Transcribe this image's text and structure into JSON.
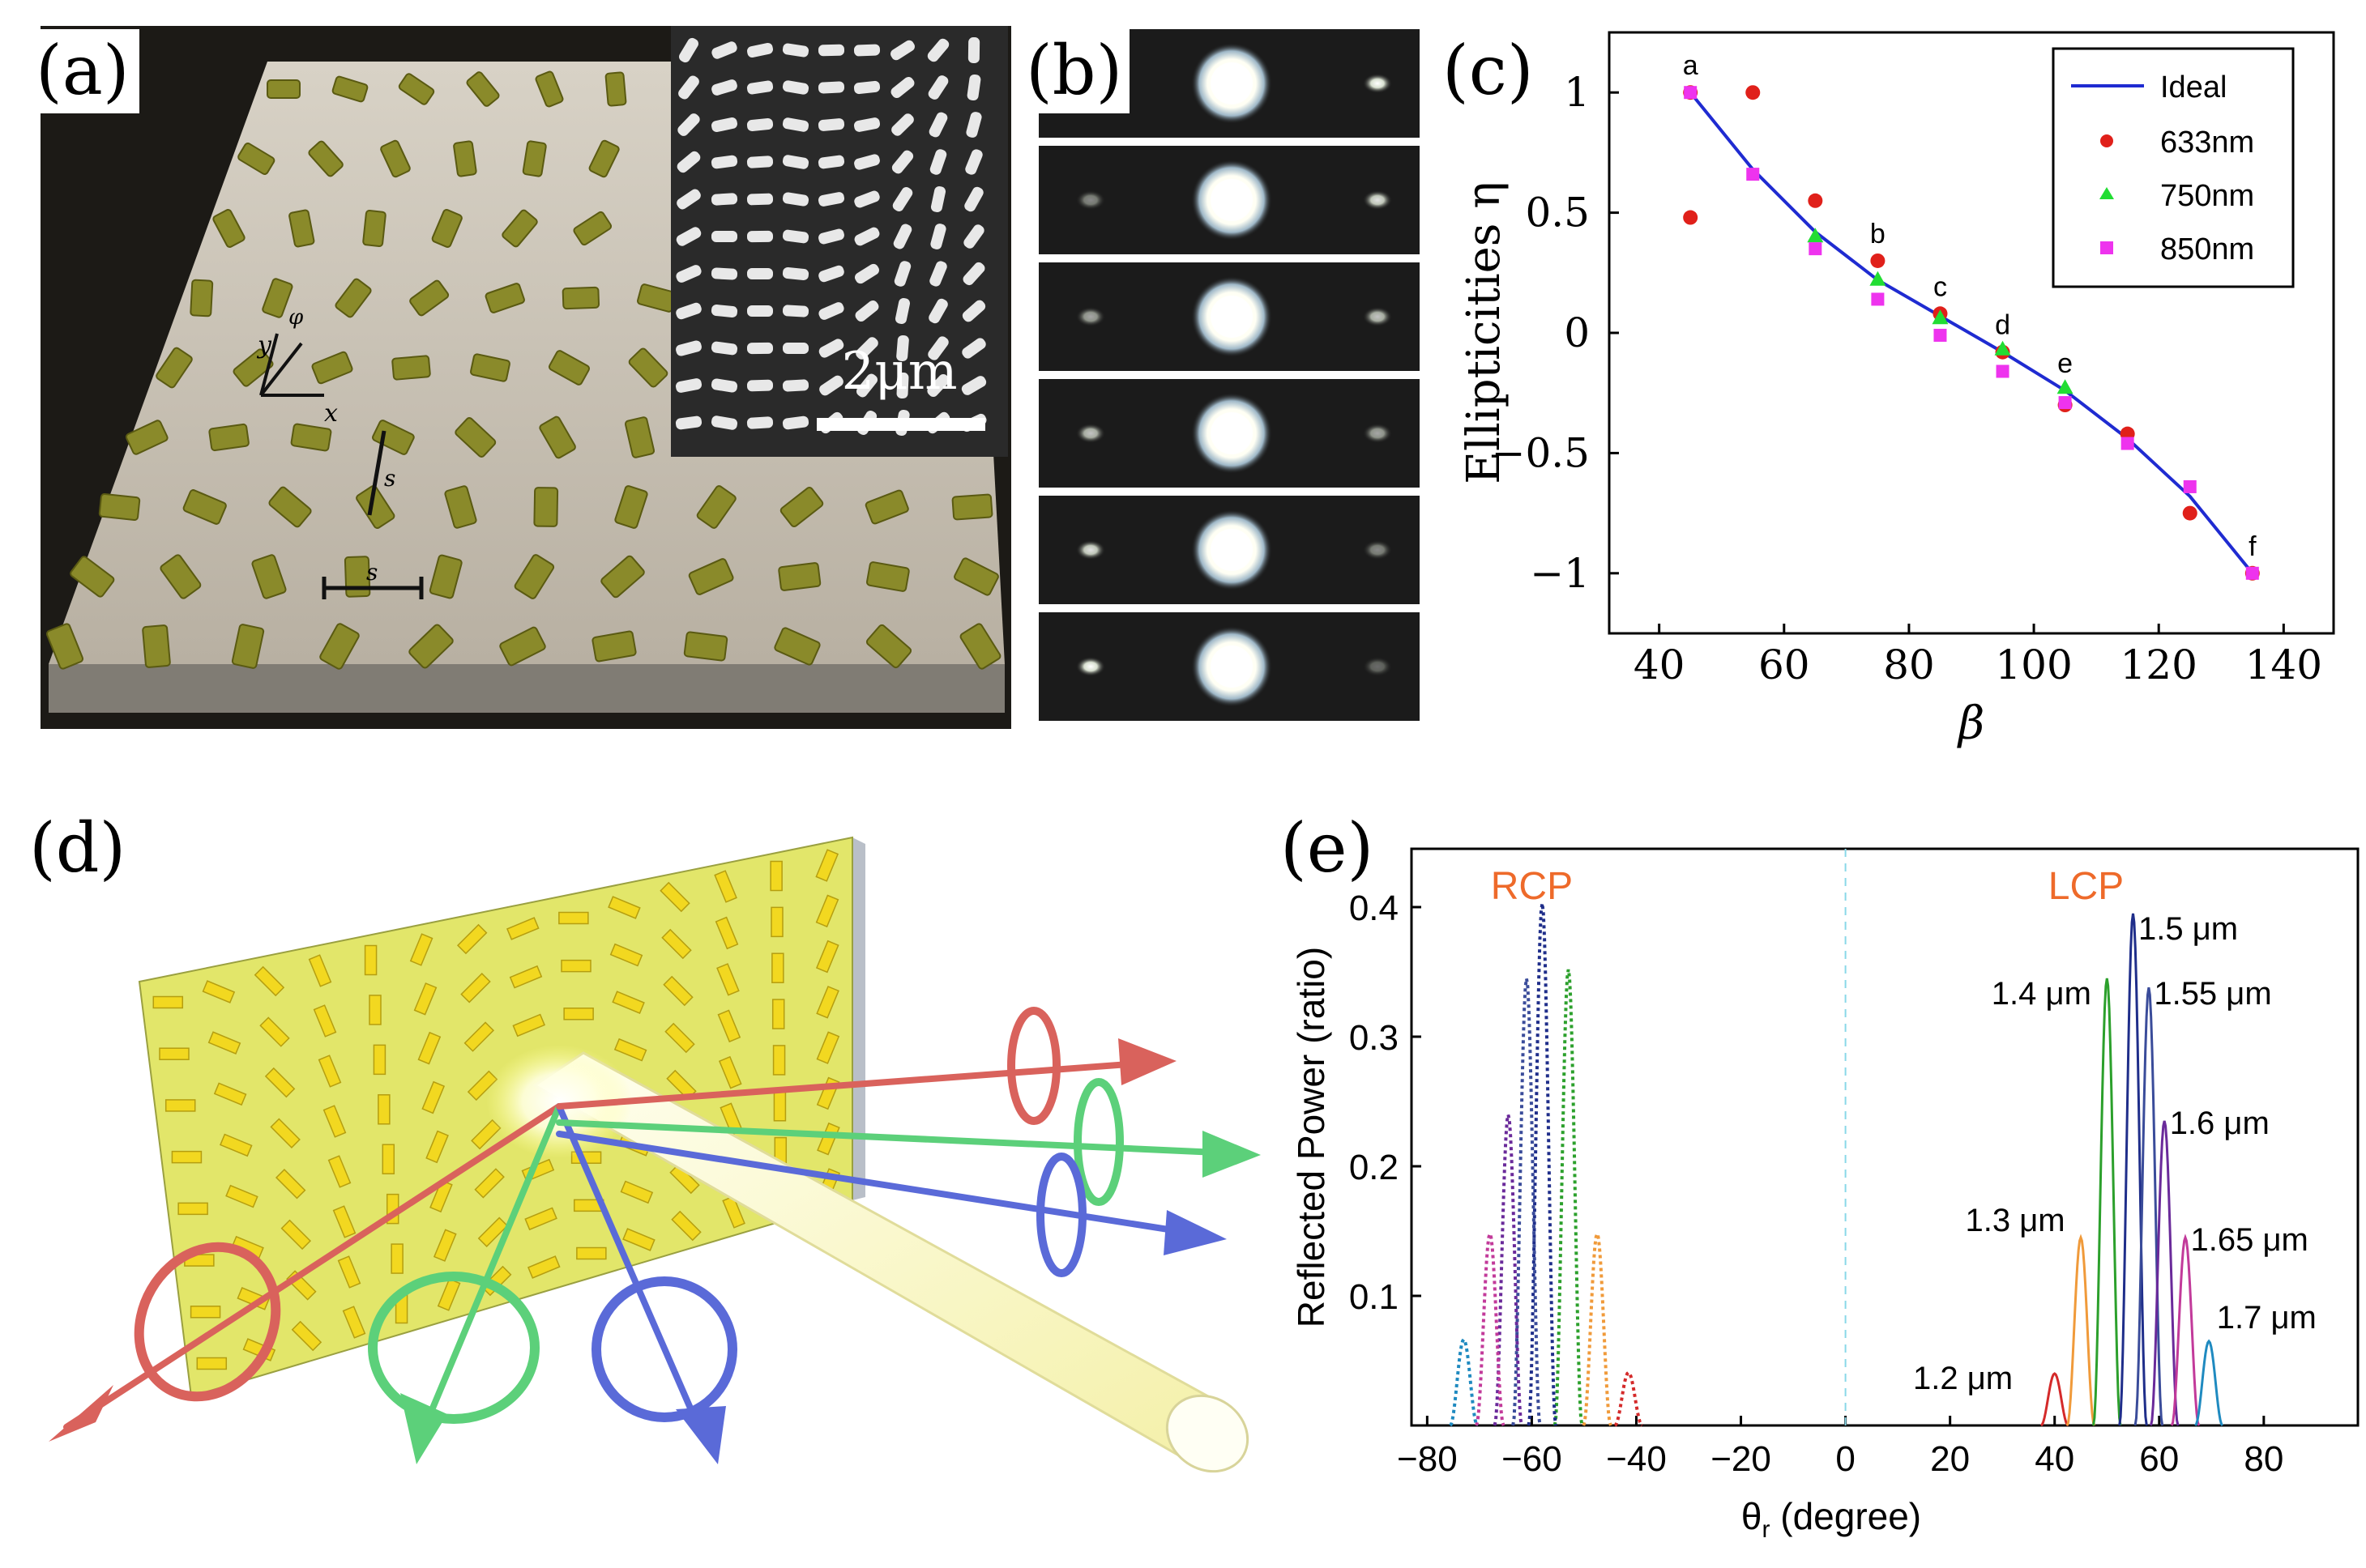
{
  "panels": {
    "a": {
      "label": "(a)",
      "inset_scale": "2μm",
      "axis_x": "x",
      "axis_y": "y",
      "angle_symbol": "φ",
      "spacing_symbol": "s"
    },
    "b": {
      "label": "(b)",
      "strip_count": 6
    },
    "c": {
      "label": "(c)"
    },
    "d": {
      "label": "(d)"
    },
    "e": {
      "label": "(e)"
    }
  },
  "chart_data": [
    {
      "id": "c",
      "type": "scatter",
      "xlabel": "β",
      "ylabel": "Ellipticities η",
      "xlim": [
        32,
        148
      ],
      "ylim": [
        -1.25,
        1.25
      ],
      "xticks": [
        40,
        60,
        80,
        100,
        120,
        140
      ],
      "yticks": [
        1,
        0.5,
        0,
        -0.5,
        -1
      ],
      "ytick_labels": [
        "1",
        "0.5",
        "0",
        "−0.5",
        "−1"
      ],
      "legend_position": "top-right",
      "series": [
        {
          "name": "Ideal",
          "kind": "line",
          "color": "#1f2bd1",
          "x": [
            45,
            55,
            65,
            75,
            85,
            95,
            105,
            115,
            125,
            135
          ],
          "y": [
            1.0,
            0.68,
            0.42,
            0.22,
            0.07,
            -0.08,
            -0.24,
            -0.44,
            -0.68,
            -1.0
          ]
        },
        {
          "name": "633nm",
          "kind": "marker",
          "marker": "circle",
          "color": "#e0201a",
          "x": [
            45,
            45,
            55,
            65,
            75,
            85,
            95,
            105,
            115,
            125,
            135
          ],
          "y": [
            1.0,
            0.48,
            1.0,
            0.55,
            0.3,
            0.08,
            -0.08,
            -0.3,
            -0.42,
            -0.75,
            -1.0
          ]
        },
        {
          "name": "750nm",
          "kind": "marker",
          "marker": "triangle",
          "color": "#22dd33",
          "x": [
            65,
            75,
            85,
            95,
            105
          ],
          "y": [
            0.4,
            0.22,
            0.06,
            -0.07,
            -0.23
          ]
        },
        {
          "name": "850nm",
          "kind": "marker",
          "marker": "square",
          "color": "#ee33ee",
          "x": [
            45,
            55,
            65,
            75,
            85,
            95,
            105,
            115,
            125,
            135
          ],
          "y": [
            1.0,
            0.66,
            0.35,
            0.14,
            -0.01,
            -0.16,
            -0.29,
            -0.46,
            -0.64,
            -1.0
          ]
        }
      ],
      "point_labels": [
        {
          "text": "a",
          "x": 45,
          "y": 1.0
        },
        {
          "text": "b",
          "x": 75,
          "y": 0.3
        },
        {
          "text": "c",
          "x": 85,
          "y": 0.08
        },
        {
          "text": "d",
          "x": 95,
          "y": -0.08
        },
        {
          "text": "e",
          "x": 105,
          "y": -0.24
        },
        {
          "text": "f",
          "x": 135,
          "y": -1.0
        }
      ]
    },
    {
      "id": "e",
      "type": "line",
      "xlabel": "θr (degree)",
      "xlabel_main": "θ",
      "xlabel_sub": "r",
      "xlabel_rest": " (degree)",
      "ylabel": "Reflected Power (ratio)",
      "xlim": [
        -83,
        98
      ],
      "ylim": [
        0,
        0.445
      ],
      "xticks": [
        -80,
        -60,
        -40,
        -20,
        0,
        20,
        40,
        60,
        80
      ],
      "xtick_labels": [
        "−80",
        "−60",
        "−40",
        "−20",
        "0",
        "20",
        "40",
        "60",
        "80"
      ],
      "yticks": [
        0.1,
        0.2,
        0.3,
        0.4
      ],
      "group_labels": [
        {
          "text": "RCP",
          "x": -60,
          "color": "#ee6a2a"
        },
        {
          "text": "LCP",
          "x": 46,
          "color": "#ee6a2a"
        }
      ],
      "series": [
        {
          "name": "1.2 μm",
          "color": "#d42a2a",
          "lcp_center": 40,
          "rcp_center": -41.5,
          "peak": 0.04
        },
        {
          "name": "1.3 μm",
          "color": "#f09a3a",
          "lcp_center": 45,
          "rcp_center": -47.5,
          "peak": 0.145
        },
        {
          "name": "1.4 μm",
          "color": "#2ca02c",
          "lcp_center": 50,
          "rcp_center": -53,
          "peak": 0.345
        },
        {
          "name": "1.5 μm",
          "color": "#1f2e8a",
          "lcp_center": 55,
          "rcp_center": -58,
          "peak": 0.395
        },
        {
          "name": "1.55 μm",
          "color": "#3a4c9a",
          "lcp_center": 58,
          "rcp_center": -61,
          "peak": 0.338
        },
        {
          "name": "1.6 μm",
          "color": "#6a2a9a",
          "lcp_center": 61,
          "rcp_center": -64.5,
          "peak": 0.235
        },
        {
          "name": "1.65 μm",
          "color": "#c23a9a",
          "lcp_center": 65,
          "rcp_center": -68,
          "peak": 0.145
        },
        {
          "name": "1.7 μm",
          "color": "#1f8ac0",
          "lcp_center": 69.5,
          "rcp_center": -73,
          "peak": 0.065
        }
      ],
      "peak_labels": [
        {
          "text": "1.2 μm"
        },
        {
          "text": "1.3 μm"
        },
        {
          "text": "1.4 μm"
        },
        {
          "text": "1.5 μm"
        },
        {
          "text": "1.55 μm"
        },
        {
          "text": "1.6 μm"
        },
        {
          "text": "1.65 μm"
        },
        {
          "text": "1.7 μm"
        }
      ]
    }
  ]
}
